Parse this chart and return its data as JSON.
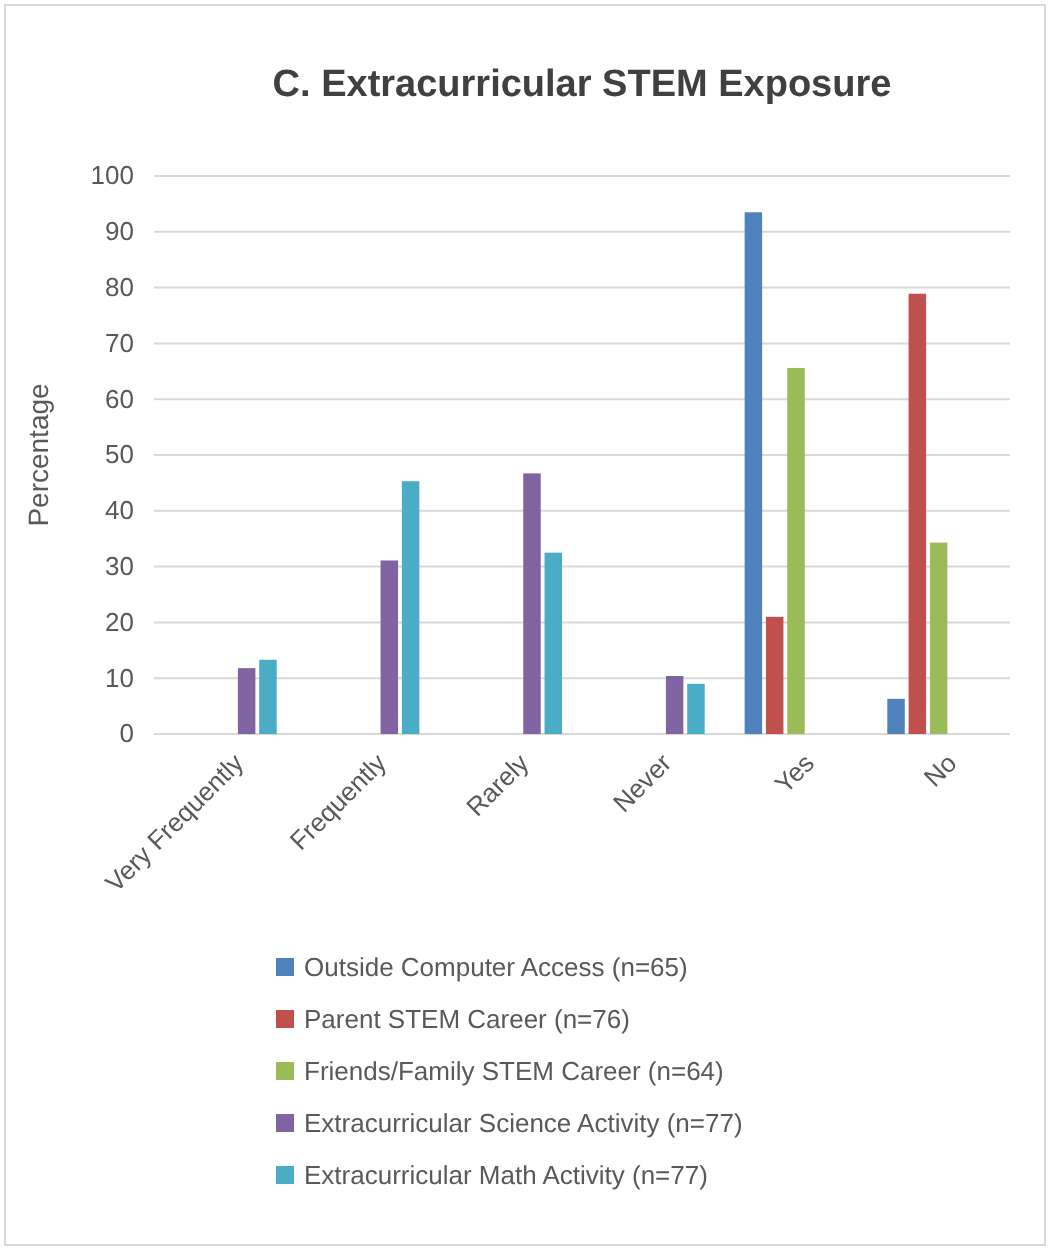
{
  "chart_data": {
    "type": "bar",
    "title": "C. Extracurricular  STEM Exposure",
    "ylabel": "Percentage",
    "categories": [
      "Very Frequently",
      "Frequently",
      "Rarely",
      "Never",
      "Yes",
      "No"
    ],
    "series": [
      {
        "name": "Outside Computer Access (n=65)",
        "color": "#4f81bd",
        "values": [
          null,
          null,
          null,
          null,
          93.5,
          6.3
        ]
      },
      {
        "name": "Parent STEM Career (n=76)",
        "color": "#c0504d",
        "values": [
          null,
          null,
          null,
          null,
          21.0,
          78.9
        ]
      },
      {
        "name": "Friends/Family STEM Career (n=64)",
        "color": "#9bbb59",
        "values": [
          null,
          null,
          null,
          null,
          65.6,
          34.3
        ]
      },
      {
        "name": "Extracurricular Science Activity (n=77)",
        "color": "#8064a2",
        "values": [
          11.8,
          31.1,
          46.7,
          10.4,
          null,
          null
        ]
      },
      {
        "name": "Extracurricular Math Activity (n=77)",
        "color": "#4bacc6",
        "values": [
          13.3,
          45.3,
          32.5,
          9.0,
          null,
          null
        ]
      }
    ],
    "ylim": [
      0,
      100
    ],
    "yticks": [
      0,
      10,
      20,
      30,
      40,
      50,
      60,
      70,
      80,
      90,
      100
    ],
    "grid": "y",
    "legend": "bottom"
  }
}
